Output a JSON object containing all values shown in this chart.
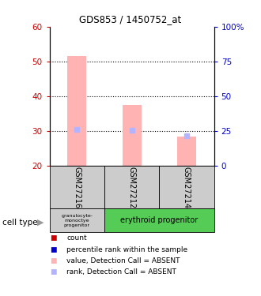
{
  "title": "GDS853 / 1450752_at",
  "samples": [
    "GSM27216",
    "GSM27212",
    "GSM27214"
  ],
  "ylim_left": [
    20,
    60
  ],
  "ylim_right": [
    0,
    100
  ],
  "left_ticks": [
    20,
    30,
    40,
    50,
    60
  ],
  "right_ticks": [
    0,
    25,
    50,
    75,
    100
  ],
  "right_tick_labels": [
    "0",
    "25",
    "50",
    "75",
    "100%"
  ],
  "bar_values": [
    51.5,
    37.5,
    28.5
  ],
  "bar_bottom": 20,
  "rank_values": [
    30.5,
    30.2,
    28.7
  ],
  "bar_color": "#ffb3b3",
  "rank_color": "#b3b3ff",
  "bar_width": 0.35,
  "cell_type_colors": [
    "#cccccc",
    "#55cc55"
  ],
  "label_color_left": "#cc0000",
  "label_color_right": "#0000cc",
  "legend_items": [
    {
      "label": "count",
      "color": "#cc0000"
    },
    {
      "label": "percentile rank within the sample",
      "color": "#0000cc"
    },
    {
      "label": "value, Detection Call = ABSENT",
      "color": "#ffb3b3"
    },
    {
      "label": "rank, Detection Call = ABSENT",
      "color": "#b3b3ff"
    }
  ]
}
